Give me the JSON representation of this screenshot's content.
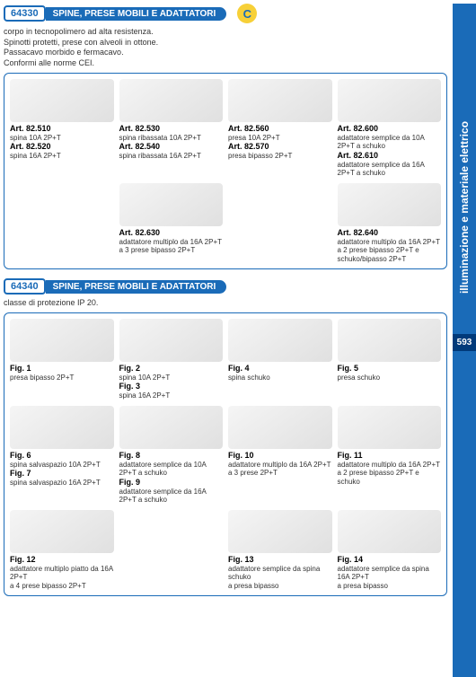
{
  "sideTab": "illuminazione e materiale elettrico",
  "pageNum": "593",
  "section1": {
    "code": "64330",
    "title": "SPINE, PRESE MOBILI E ADATTATORI",
    "intro": [
      "corpo in tecnopolimero ad alta resistenza.",
      "Spinotti protetti, prese con alveoli in ottone.",
      "Passacavo morbido e fermacavo.",
      "Conformi alle norme CEI."
    ],
    "row1": [
      {
        "lines": [
          "Art. 82.510",
          "spina 10A 2P+T",
          "Art. 82.520",
          "spina 16A 2P+T"
        ]
      },
      {
        "lines": [
          "Art. 82.530",
          "spina ribassata 10A 2P+T",
          "Art. 82.540",
          "spina ribassata 16A 2P+T"
        ]
      },
      {
        "lines": [
          "Art. 82.560",
          "presa 10A 2P+T",
          "Art. 82.570",
          "presa bipasso 2P+T"
        ]
      },
      {
        "lines": [
          "Art. 82.600",
          "adattatore semplice da 10A 2P+T a schuko",
          "Art. 82.610",
          "adattatore semplice da 16A 2P+T a schuko"
        ]
      }
    ],
    "row2": [
      {
        "empty": true
      },
      {
        "lines": [
          "Art. 82.630",
          "adattatore multiplo da 16A  2P+T",
          "a 3 prese bipasso 2P+T"
        ]
      },
      {
        "empty": true
      },
      {
        "lines": [
          "Art. 82.640",
          "adattatore multiplo da 16A  2P+T",
          "a 2 prese bipasso 2P+T e schuko/bipasso 2P+T"
        ]
      }
    ]
  },
  "section2": {
    "code": "64340",
    "title": "SPINE, PRESE MOBILI E ADATTATORI",
    "intro": "classe di protezione IP 20.",
    "row1": [
      {
        "lines": [
          "Fig. 1",
          "presa bipasso 2P+T"
        ]
      },
      {
        "lines": [
          "Fig. 2",
          "spina 10A 2P+T",
          "Fig. 3",
          "spina 16A 2P+T"
        ]
      },
      {
        "lines": [
          "Fig. 4",
          "spina schuko"
        ]
      },
      {
        "lines": [
          "Fig. 5",
          "presa schuko"
        ]
      }
    ],
    "row2": [
      {
        "lines": [
          "Fig. 6",
          "spina salvaspazio 10A 2P+T",
          "Fig. 7",
          "spina salvaspazio 16A 2P+T"
        ]
      },
      {
        "lines": [
          "Fig. 8",
          "adattatore semplice da 10A 2P+T a schuko",
          "Fig. 9",
          "adattatore semplice da 16A 2P+T a schuko"
        ]
      },
      {
        "lines": [
          "Fig. 10",
          "adattatore multiplo da 16A 2P+T",
          "a 3 prese 2P+T"
        ]
      },
      {
        "lines": [
          "Fig. 11",
          "adattatore multiplo da 16A 2P+T",
          "a 2 prese bipasso 2P+T e schuko"
        ]
      }
    ],
    "row3": [
      {
        "lines": [
          "Fig. 12",
          "adattatore multiplo piatto da 16A 2P+T",
          "a 4 prese bipasso 2P+T"
        ]
      },
      {
        "empty": true
      },
      {
        "lines": [
          "Fig. 13",
          "adattatore  semplice da spina schuko",
          "a presa bipasso"
        ]
      },
      {
        "lines": [
          "Fig. 14",
          "adattatore semplice da spina 16A 2P+T",
          "a presa bipasso"
        ]
      }
    ]
  },
  "colors": {
    "blue": "#1a6bb8",
    "darkBlue": "#003a7a",
    "yellow": "#f7d038"
  }
}
